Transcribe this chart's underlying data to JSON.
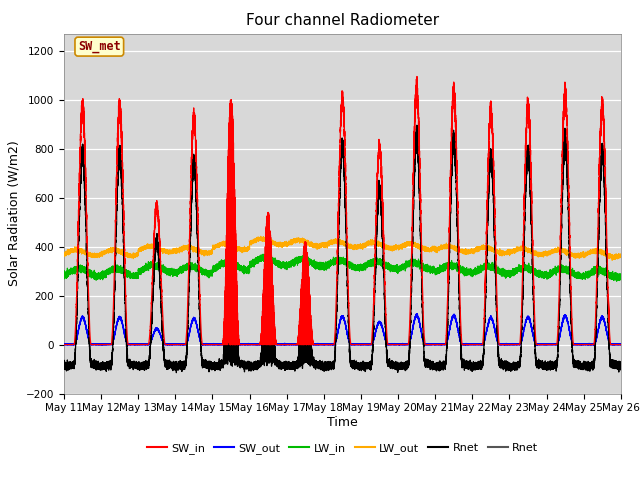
{
  "title": "Four channel Radiometer",
  "xlabel": "Time",
  "ylabel": "Solar Radiation (W/m2)",
  "ylim": [
    -200,
    1270
  ],
  "xlim_days": [
    11,
    26
  ],
  "annotation": "SW_met",
  "x_tick_labels": [
    "May 11",
    "May 12",
    "May 13",
    "May 14",
    "May 15",
    "May 16",
    "May 17",
    "May 18",
    "May 19",
    "May 20",
    "May 21",
    "May 22",
    "May 23",
    "May 24",
    "May 25",
    "May 26"
  ],
  "legend_entries": [
    "SW_in",
    "SW_out",
    "LW_in",
    "LW_out",
    "Rnet",
    "Rnet"
  ],
  "sw_in_color": "#ff0000",
  "sw_out_color": "#0000ff",
  "lw_in_color": "#00bb00",
  "lw_out_color": "#ffaa00",
  "rnet_color": "#000000",
  "bg_color": "#d8d8d8",
  "title_fontsize": 11,
  "axis_label_fontsize": 9,
  "tick_fontsize": 7.5,
  "yticks": [
    -200,
    0,
    200,
    400,
    600,
    800,
    1000,
    1200
  ],
  "peak_sw": [
    970,
    970,
    560,
    920,
    1010,
    540,
    420,
    1000,
    800,
    1040,
    1030,
    950,
    970,
    1020,
    970
  ],
  "lw_in_base": [
    295,
    295,
    310,
    305,
    320,
    340,
    335,
    330,
    325,
    320,
    310,
    305,
    300,
    295,
    290
  ],
  "lw_out_base": [
    375,
    375,
    390,
    385,
    400,
    420,
    415,
    410,
    405,
    400,
    390,
    385,
    380,
    375,
    370
  ]
}
